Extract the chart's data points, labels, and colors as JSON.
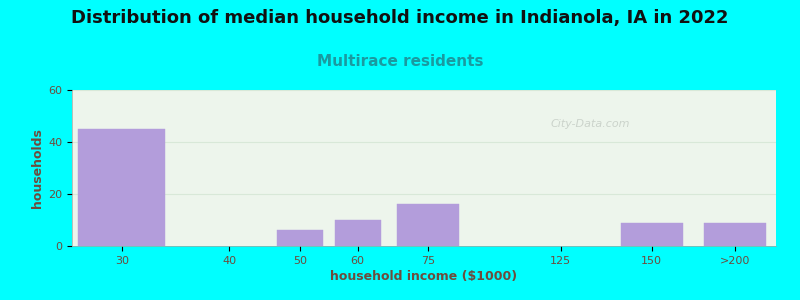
{
  "title": "Distribution of median household income in Indianola, IA in 2022",
  "subtitle": "Multirace residents",
  "xlabel": "household income ($1000)",
  "ylabel": "households",
  "background_color": "#00FFFF",
  "plot_bg_color": "#edf5ec",
  "bar_color": "#b39ddb",
  "categories": [
    "30",
    "40",
    "50",
    "60",
    "75",
    "125",
    "150",
    ">200"
  ],
  "values": [
    45,
    0,
    6,
    10,
    16,
    0,
    9,
    9
  ],
  "ylim": [
    0,
    60
  ],
  "yticks": [
    0,
    20,
    40,
    60
  ],
  "title_fontsize": 13,
  "subtitle_fontsize": 11,
  "axis_label_fontsize": 9,
  "tick_fontsize": 8,
  "watermark_text": "City-Data.com",
  "watermark_color": "#c0c8c0",
  "grid_color": "#d8e8d8",
  "title_color": "#111111",
  "subtitle_color": "#1a9aa0",
  "tick_color": "#6d4c3d",
  "label_color": "#6d4c3d"
}
